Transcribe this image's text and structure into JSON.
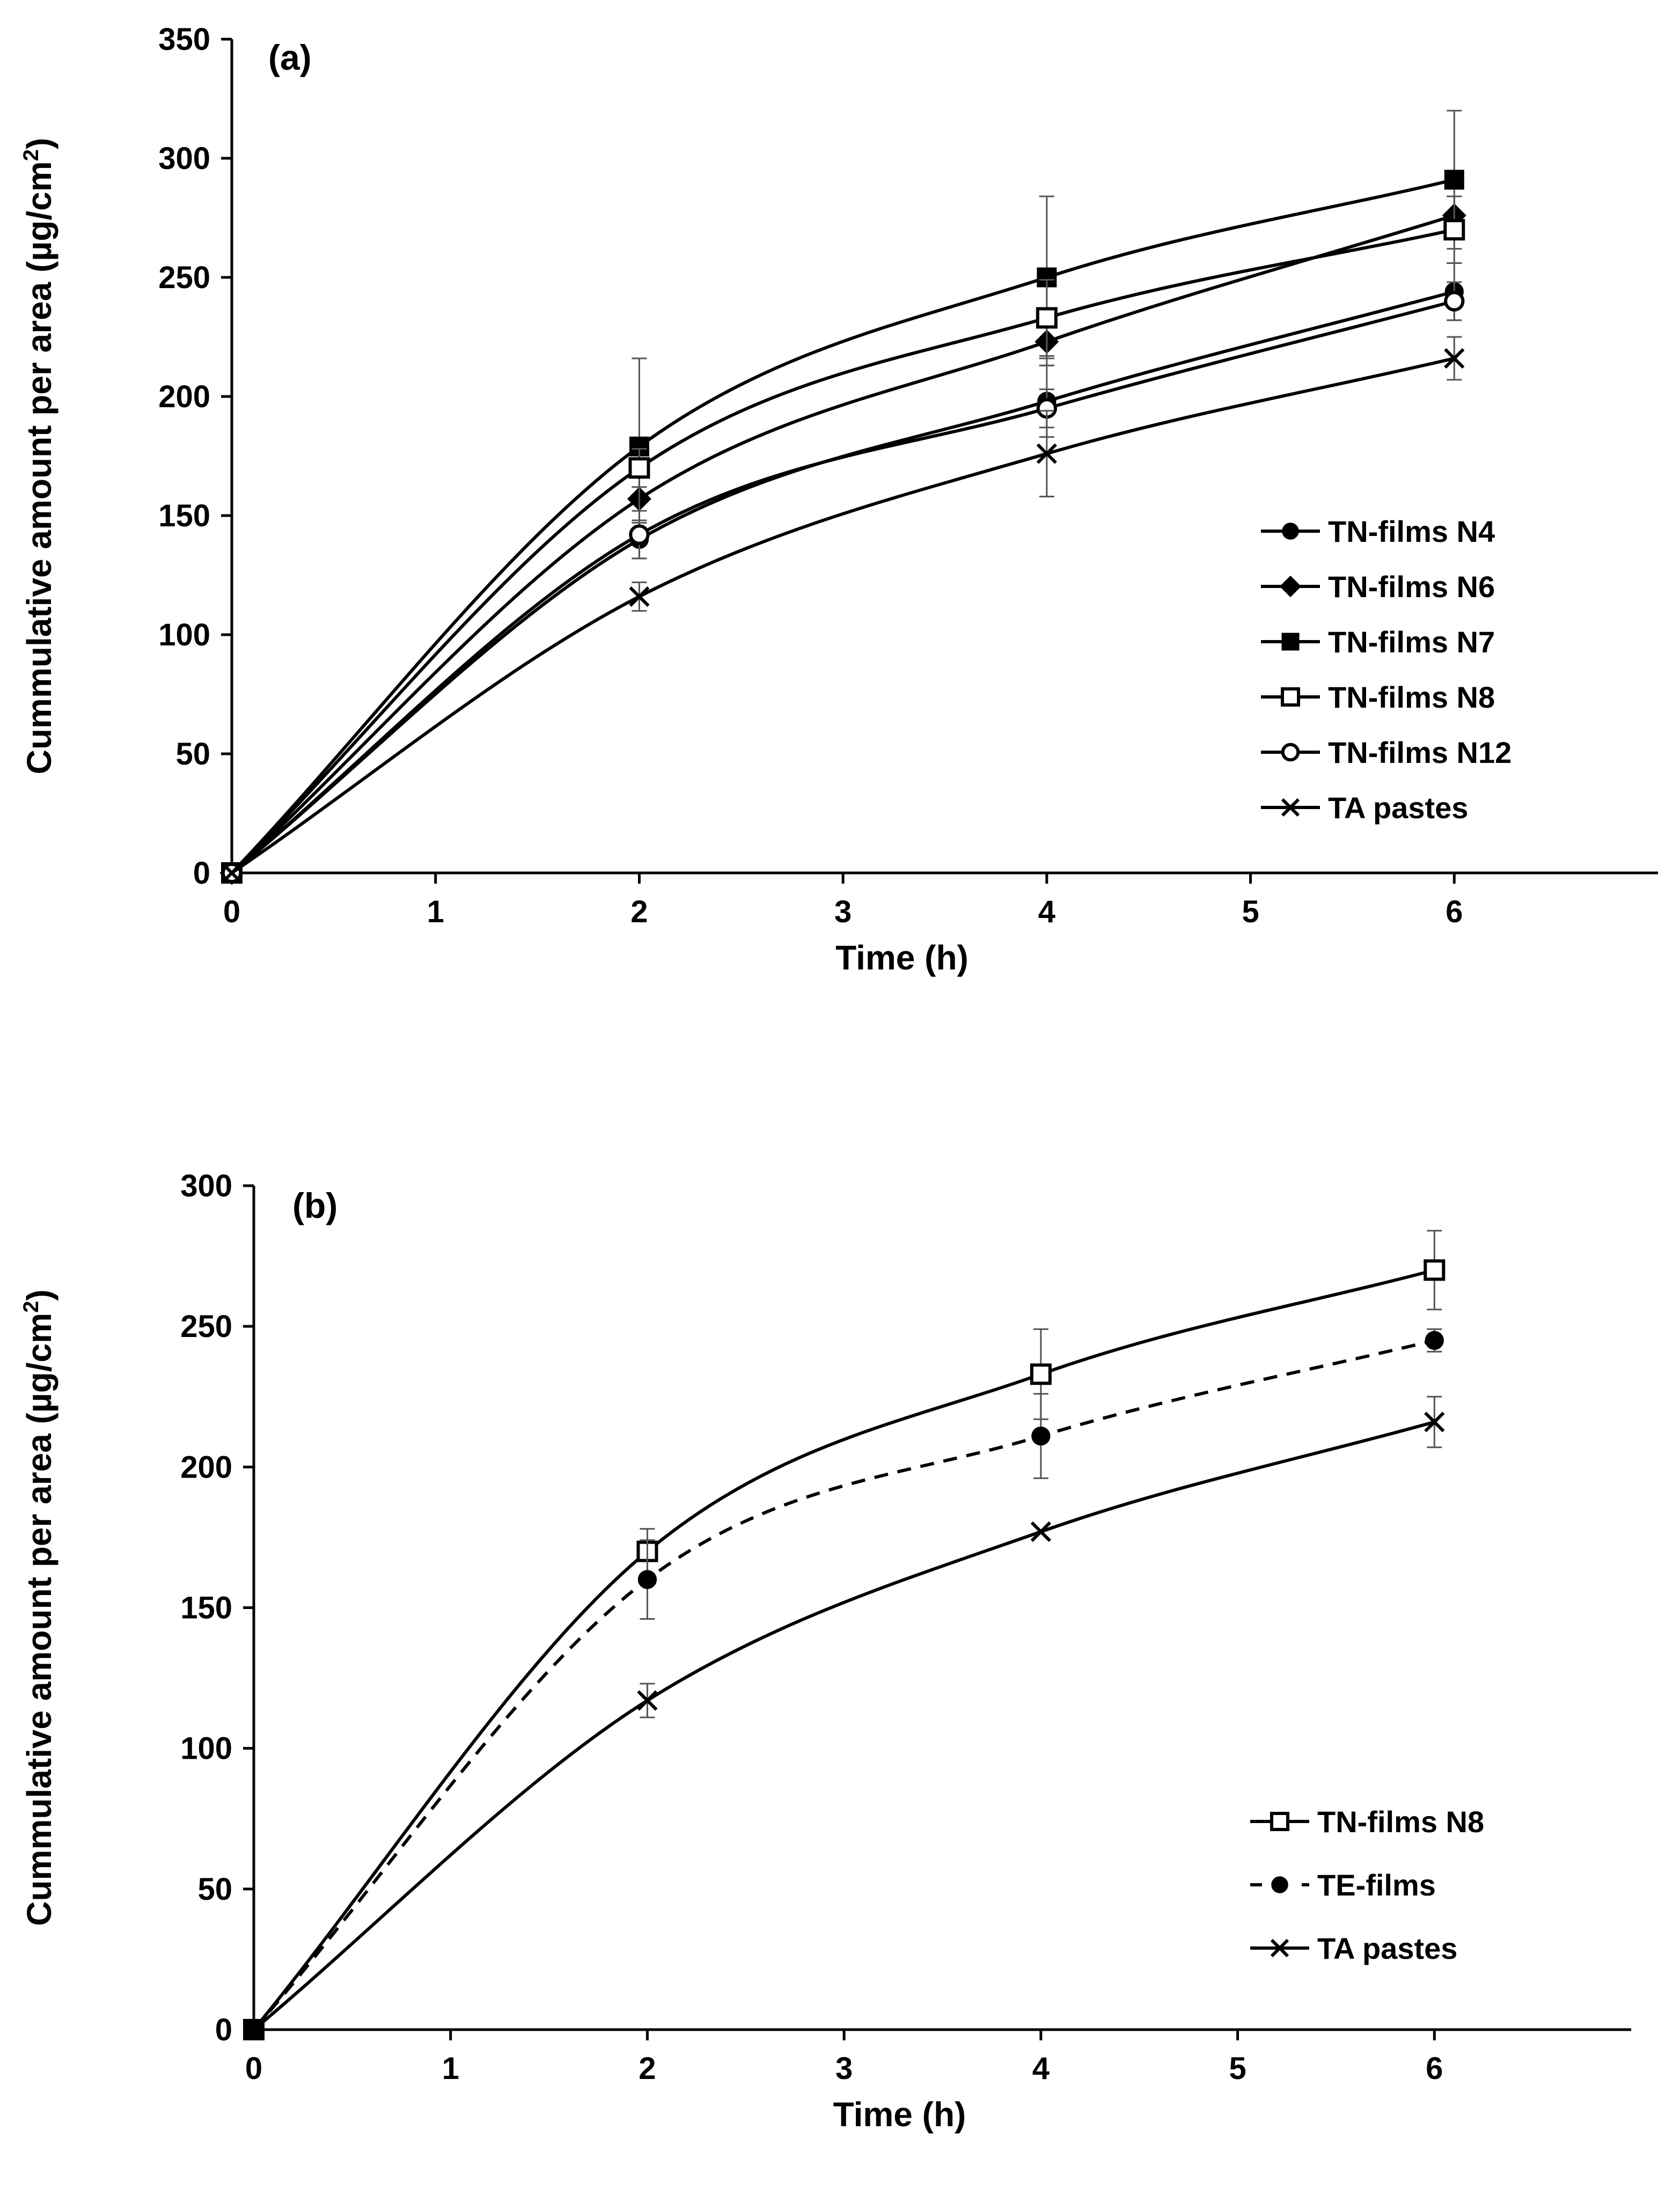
{
  "chart_data": [
    {
      "type": "line",
      "panel_label": "(a)",
      "xlabel": "Time (h)",
      "ylabel": "Cummulative amount per area (µg/cm²)",
      "ylabel_main": "Cummulative amount per area (µg/cm",
      "ylabel_sup": "2",
      "ylabel_tail": ")",
      "xlim": [
        0,
        7
      ],
      "ylim": [
        0,
        350
      ],
      "x_ticks": [
        0,
        1,
        2,
        3,
        4,
        5,
        6
      ],
      "x_tick_labels": [
        "0",
        "1",
        "2",
        "3",
        "4",
        "5",
        "6"
      ],
      "y_ticks": [
        0,
        50,
        100,
        150,
        200,
        250,
        300,
        350
      ],
      "y_tick_labels": [
        "0",
        "50",
        "100",
        "150",
        "200",
        "250",
        "300",
        "350"
      ],
      "grid": false,
      "legend_position": "right-middle",
      "x": [
        0,
        2,
        4,
        6
      ],
      "series": [
        {
          "name": "TN-films N4",
          "marker": "filled-circle",
          "line_style": "solid",
          "values": [
            0,
            140,
            198,
            244
          ],
          "errors": [
            0,
            8,
            15,
            12
          ]
        },
        {
          "name": "TN-films N6",
          "marker": "filled-diamond",
          "line_style": "solid",
          "values": [
            0,
            157,
            223,
            276
          ],
          "errors": [
            0,
            10,
            10,
            8
          ]
        },
        {
          "name": "TN-films N7",
          "marker": "filled-square",
          "line_style": "solid",
          "values": [
            0,
            179,
            250,
            291
          ],
          "errors": [
            0,
            37,
            34,
            29
          ]
        },
        {
          "name": "TN-films N8",
          "marker": "open-square",
          "line_style": "solid",
          "values": [
            0,
            170,
            233,
            270
          ],
          "errors": [
            0,
            8,
            16,
            14
          ]
        },
        {
          "name": "TN-films N12",
          "marker": "open-circle",
          "line_style": "solid",
          "values": [
            0,
            142,
            195,
            240
          ],
          "errors": [
            0,
            10,
            8,
            8
          ]
        },
        {
          "name": "TA pastes",
          "marker": "x",
          "line_style": "solid",
          "values": [
            0,
            116,
            176,
            216
          ],
          "errors": [
            0,
            6,
            18,
            9
          ]
        }
      ]
    },
    {
      "type": "line",
      "panel_label": "(b)",
      "xlabel": "Time (h)",
      "ylabel": "Cummulative amount per area (µg/cm²)",
      "ylabel_main": "Cummulative amount per area (µg/cm",
      "ylabel_sup": "2",
      "ylabel_tail": ")",
      "xlim": [
        0,
        7
      ],
      "ylim": [
        0,
        300
      ],
      "x_ticks": [
        0,
        1,
        2,
        3,
        4,
        5,
        6
      ],
      "x_tick_labels": [
        "0",
        "1",
        "2",
        "3",
        "4",
        "5",
        "6"
      ],
      "y_ticks": [
        0,
        50,
        100,
        150,
        200,
        250,
        300
      ],
      "y_tick_labels": [
        "0",
        "50",
        "100",
        "150",
        "200",
        "250",
        "300"
      ],
      "grid": false,
      "legend_position": "bottom-right",
      "x": [
        0,
        2,
        4,
        6
      ],
      "series": [
        {
          "name": "TN-films N8",
          "marker": "open-square",
          "line_style": "solid",
          "values": [
            0,
            170,
            233,
            270
          ],
          "errors": [
            0,
            8,
            16,
            14
          ]
        },
        {
          "name": "TE-films",
          "marker": "filled-circle",
          "line_style": "dashed",
          "values": [
            0,
            160,
            211,
            245
          ],
          "errors": [
            0,
            14,
            15,
            4
          ]
        },
        {
          "name": "TA pastes",
          "marker": "x",
          "line_style": "solid",
          "values": [
            0,
            117,
            177,
            216
          ],
          "errors": [
            0,
            6,
            0,
            9
          ]
        }
      ]
    }
  ]
}
